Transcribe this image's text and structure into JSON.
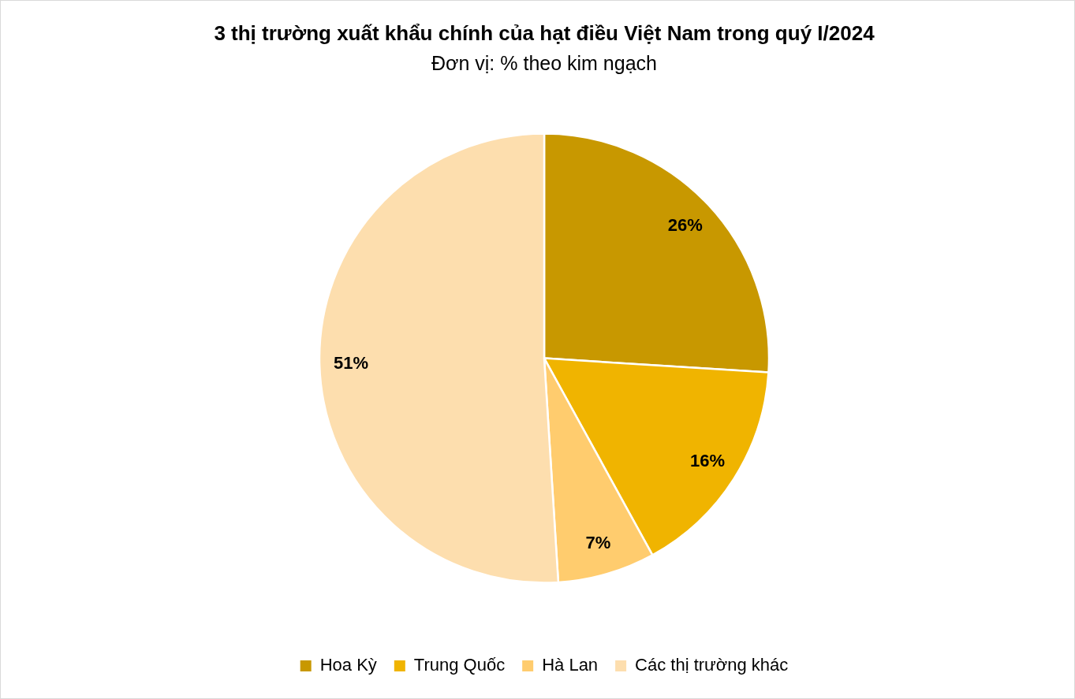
{
  "chart_data": {
    "type": "pie",
    "title": "3 thị trường xuất khẩu chính của hạt điều Việt Nam trong quý I/2024",
    "subtitle": "Đơn vị: % theo kim ngạch",
    "categories": [
      "Hoa Kỳ",
      "Trung Quốc",
      "Hà Lan",
      "Các thị trường khác"
    ],
    "values": [
      26,
      16,
      7,
      51
    ],
    "colors": [
      "#c89800",
      "#f0b400",
      "#ffcc6e",
      "#fddeae"
    ],
    "value_labels": [
      "26%",
      "16%",
      "7%",
      "51%"
    ],
    "legend": "bottom"
  }
}
